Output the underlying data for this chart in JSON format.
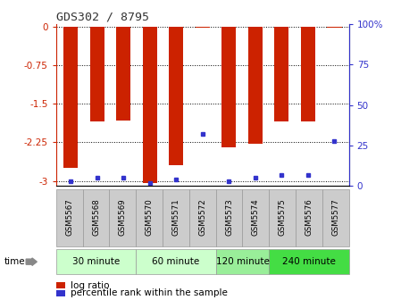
{
  "title": "GDS302 / 8795",
  "samples": [
    "GSM5567",
    "GSM5568",
    "GSM5569",
    "GSM5570",
    "GSM5571",
    "GSM5572",
    "GSM5573",
    "GSM5574",
    "GSM5575",
    "GSM5576",
    "GSM5577"
  ],
  "log_ratio": [
    -2.75,
    -1.85,
    -1.82,
    -3.05,
    -2.7,
    -0.02,
    -2.35,
    -2.28,
    -1.85,
    -1.85,
    -0.02
  ],
  "percentile": [
    3,
    5,
    5,
    2,
    4,
    32,
    3,
    5,
    7,
    7,
    28
  ],
  "ylim_low": -3.1,
  "ylim_high": 0.05,
  "yticks": [
    0,
    -0.75,
    -1.5,
    -2.25,
    -3
  ],
  "ytick_labels": [
    "0",
    "-0.75",
    "-1.5",
    "-2.25",
    "-3"
  ],
  "right_yticks": [
    0,
    25,
    50,
    75,
    100
  ],
  "right_ytick_labels": [
    "0",
    "25",
    "50",
    "75",
    "100%"
  ],
  "bar_color": "#cc2200",
  "dot_color": "#3333cc",
  "background_color": "#ffffff",
  "groups": [
    {
      "label": "30 minute",
      "indices": [
        0,
        1,
        2
      ],
      "color": "#ccffcc"
    },
    {
      "label": "60 minute",
      "indices": [
        3,
        4,
        5
      ],
      "color": "#ccffcc"
    },
    {
      "label": "120 minute",
      "indices": [
        6,
        7
      ],
      "color": "#99ee99"
    },
    {
      "label": "240 minute",
      "indices": [
        8,
        9,
        10
      ],
      "color": "#44dd44"
    }
  ],
  "bar_width": 0.55,
  "left_tick_color": "#cc2200",
  "right_tick_color": "#3333cc"
}
